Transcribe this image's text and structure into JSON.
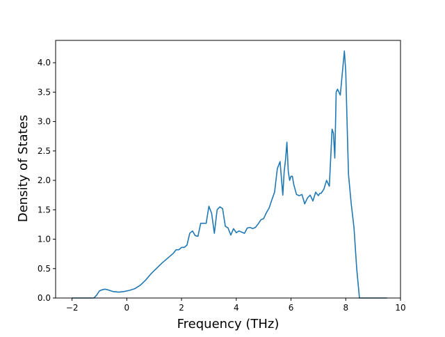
{
  "colors": {
    "series": "#1f77b4",
    "axes": "#000000",
    "background": "#ffffff"
  },
  "chart_data": {
    "type": "line",
    "title": "",
    "xlabel": "Frequency (THz)",
    "ylabel": "Density of States",
    "xlim": [
      -2.6,
      10.0
    ],
    "ylim": [
      0,
      4.38
    ],
    "xticks": [
      -2,
      0,
      2,
      4,
      6,
      8,
      10
    ],
    "yticks": [
      0.0,
      0.5,
      1.0,
      1.5,
      2.0,
      2.5,
      3.0,
      3.5,
      4.0
    ],
    "xtick_labels": [
      "−2",
      "0",
      "2",
      "4",
      "6",
      "8",
      "10"
    ],
    "ytick_labels": [
      "0.0",
      "0.5",
      "1.0",
      "1.5",
      "2.0",
      "2.5",
      "3.0",
      "3.5",
      "4.0"
    ],
    "grid": false,
    "legend": "none",
    "series": [
      {
        "x": [
          -2.0,
          -1.6,
          -1.2,
          -1.1,
          -1.0,
          -0.9,
          -0.8,
          -0.7,
          -0.5,
          -0.3,
          -0.1,
          0.1,
          0.3,
          0.5,
          0.7,
          0.9,
          1.1,
          1.3,
          1.5,
          1.7,
          1.8,
          1.9,
          2.0,
          2.1,
          2.2,
          2.3,
          2.4,
          2.5,
          2.6,
          2.7,
          2.8,
          2.9,
          3.0,
          3.1,
          3.2,
          3.3,
          3.4,
          3.5,
          3.6,
          3.7,
          3.8,
          3.9,
          4.0,
          4.1,
          4.2,
          4.3,
          4.4,
          4.5,
          4.6,
          4.7,
          4.8,
          4.9,
          5.0,
          5.1,
          5.2,
          5.3,
          5.4,
          5.5,
          5.6,
          5.7,
          5.75,
          5.8,
          5.85,
          5.9,
          5.95,
          6.0,
          6.05,
          6.1,
          6.2,
          6.3,
          6.4,
          6.5,
          6.6,
          6.7,
          6.8,
          6.9,
          7.0,
          7.05,
          7.1,
          7.2,
          7.3,
          7.4,
          7.5,
          7.55,
          7.6,
          7.65,
          7.7,
          7.75,
          7.8,
          7.85,
          7.9,
          7.95,
          8.0,
          8.05,
          8.1,
          8.2,
          8.3,
          8.4,
          8.5,
          8.55,
          8.6,
          9.0,
          9.5
        ],
        "y": [
          0.0,
          0.0,
          0.0,
          0.05,
          0.12,
          0.14,
          0.15,
          0.14,
          0.11,
          0.1,
          0.11,
          0.13,
          0.16,
          0.22,
          0.31,
          0.42,
          0.51,
          0.6,
          0.68,
          0.76,
          0.82,
          0.82,
          0.86,
          0.86,
          0.9,
          1.1,
          1.14,
          1.06,
          1.05,
          1.27,
          1.27,
          1.27,
          1.56,
          1.44,
          1.1,
          1.5,
          1.55,
          1.52,
          1.22,
          1.19,
          1.07,
          1.18,
          1.11,
          1.14,
          1.12,
          1.1,
          1.19,
          1.2,
          1.18,
          1.2,
          1.26,
          1.33,
          1.35,
          1.45,
          1.53,
          1.67,
          1.8,
          2.2,
          2.32,
          1.75,
          2.15,
          2.35,
          2.65,
          2.15,
          2.0,
          2.07,
          2.07,
          1.93,
          1.76,
          1.74,
          1.76,
          1.6,
          1.7,
          1.75,
          1.65,
          1.8,
          1.74,
          1.78,
          1.78,
          1.85,
          2.0,
          1.9,
          2.87,
          2.8,
          2.38,
          3.5,
          3.55,
          3.5,
          3.45,
          3.7,
          3.95,
          4.2,
          3.85,
          2.95,
          2.1,
          1.6,
          1.2,
          0.5,
          0.0,
          0.0,
          0.0,
          0.0,
          0.0
        ]
      }
    ]
  }
}
